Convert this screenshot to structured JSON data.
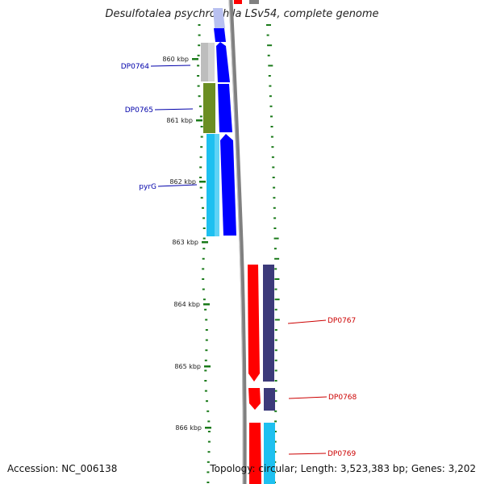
{
  "title": "Desulfotalea psychrophila LSv54, complete genome",
  "footer": {
    "accession": "Accession: NC_006138",
    "topology": "Topology: circular; Length: 3,523,383 bp; Genes: 3,202"
  },
  "ticks": [
    "860 kbp",
    "861 kbp",
    "862 kbp",
    "863 kbp",
    "864 kbp",
    "865 kbp",
    "866 kbp"
  ],
  "genes": [
    {
      "name": "DP0764",
      "color": "#0000aa"
    },
    {
      "name": "DP0765",
      "color": "#0000aa"
    },
    {
      "name": "pyrG",
      "color": "#0000aa"
    },
    {
      "name": "DP0767",
      "color": "#cc0000"
    },
    {
      "name": "DP0768",
      "color": "#cc0000"
    },
    {
      "name": "DP0769",
      "color": "#cc0000"
    }
  ],
  "colors": {
    "blue": "#0000ff",
    "red": "#ff0000",
    "navy": "#3c3a7a",
    "cyan": "#1ec0f0",
    "olive": "#6b8e23",
    "gray": "#c0c0c0",
    "backbone": "#808080",
    "tick_green": "#1a7a1a"
  }
}
